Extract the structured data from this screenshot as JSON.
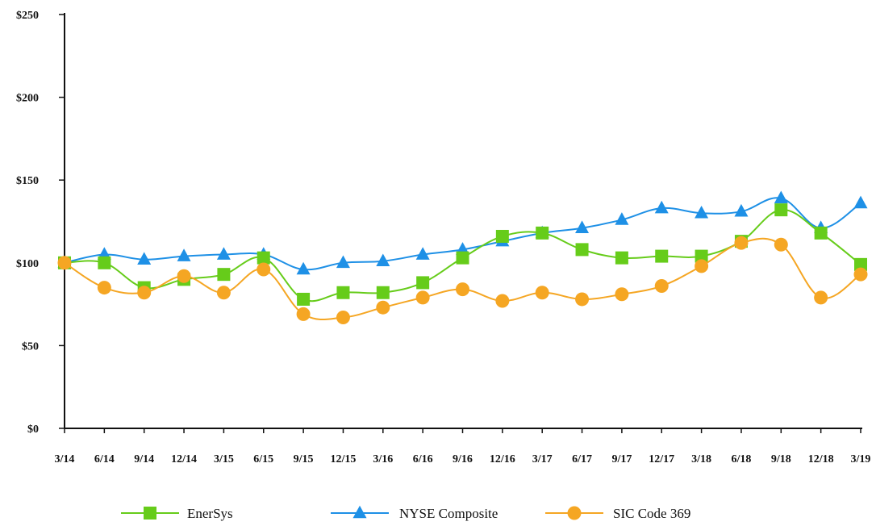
{
  "chart_data": {
    "type": "line",
    "title": "",
    "xlabel": "",
    "ylabel": "",
    "categories": [
      "3/14",
      "6/14",
      "9/14",
      "12/14",
      "3/15",
      "6/15",
      "9/15",
      "12/15",
      "3/16",
      "6/16",
      "9/16",
      "12/16",
      "3/17",
      "6/17",
      "9/17",
      "12/17",
      "3/18",
      "6/18",
      "9/18",
      "12/18",
      "3/19"
    ],
    "ylim": [
      0,
      250
    ],
    "y_ticks": [
      0,
      50,
      100,
      150,
      200,
      250
    ],
    "y_tick_labels": [
      "$0",
      "$50",
      "$100",
      "$150",
      "$200",
      "$250"
    ],
    "grid": false,
    "legend_position": "bottom",
    "series": [
      {
        "name": "EnerSys",
        "color": "#66cc1a",
        "marker": "square",
        "values": [
          100,
          100,
          85,
          90,
          93,
          103,
          78,
          82,
          82,
          88,
          103,
          116,
          118,
          108,
          103,
          104,
          104,
          113,
          132,
          118,
          99
        ]
      },
      {
        "name": "NYSE Composite",
        "color": "#1e90e6",
        "marker": "triangle",
        "values": [
          100,
          105,
          102,
          104,
          105,
          105,
          96,
          100,
          101,
          105,
          108,
          113,
          118,
          121,
          126,
          133,
          130,
          131,
          139,
          121,
          136
        ]
      },
      {
        "name": "SIC Code 369",
        "color": "#f5a623",
        "marker": "circle",
        "values": [
          100,
          85,
          82,
          92,
          82,
          96,
          69,
          67,
          73,
          79,
          84,
          77,
          82,
          78,
          81,
          86,
          98,
          112,
          111,
          79,
          93
        ]
      }
    ]
  }
}
